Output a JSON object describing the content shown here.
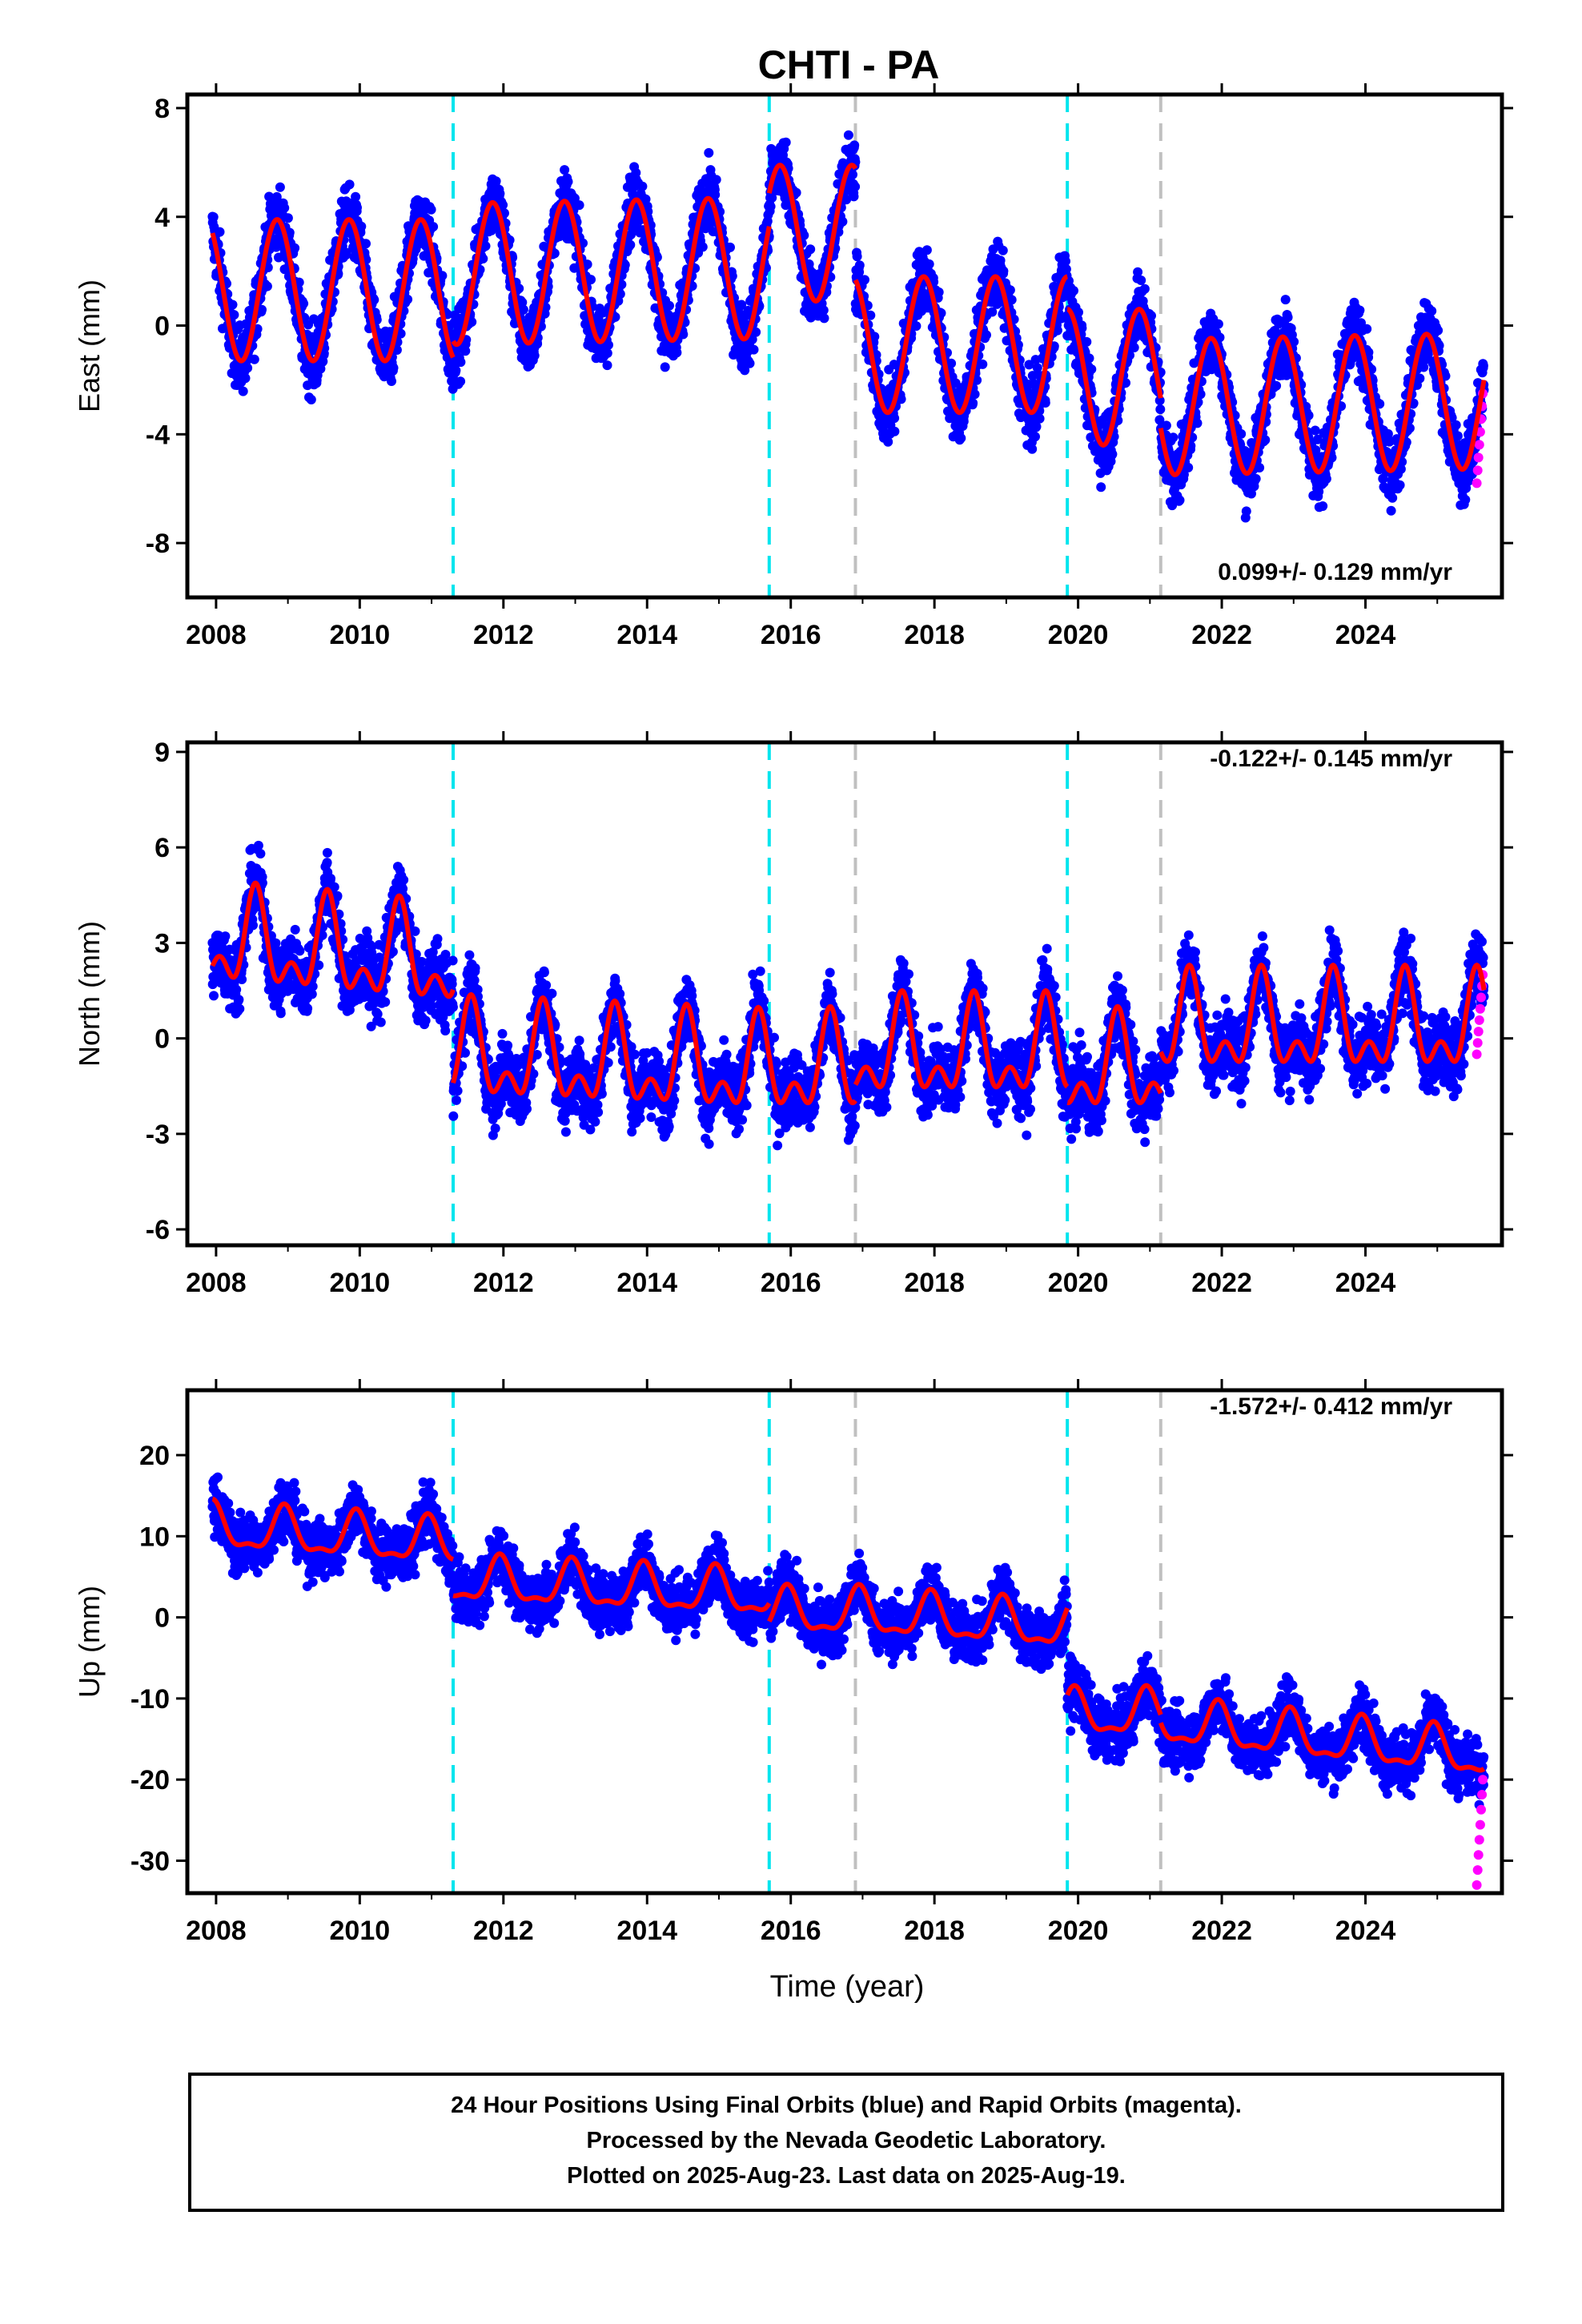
{
  "title": "CHTI - PA",
  "xlabel": "Time (year)",
  "footer": {
    "line1": "24 Hour Positions Using Final Orbits (blue) and Rapid Orbits (magenta).",
    "line2": "Processed by the Nevada Geodetic Laboratory.",
    "line3": "Plotted on 2025-Aug-23. Last data on 2025-Aug-19."
  },
  "colors": {
    "final_points": "#0000ff",
    "rapid_points": "#ff00ff",
    "model_line": "#ff0000",
    "equipment_change": "#00e5ee",
    "other_event": "#c0c0c0"
  },
  "chart_data": [
    {
      "type": "scatter",
      "component": "East",
      "ylabel": "East (mm)",
      "rate_text": "0.099+/- 0.129 mm/yr",
      "xlim": [
        2007.6,
        2025.9
      ],
      "ylim": [
        -10,
        8.5
      ],
      "xticks": [
        "2008",
        "2010",
        "2012",
        "2014",
        "2016",
        "2018",
        "2020",
        "2022",
        "2024"
      ],
      "yticks": [
        "8",
        "4",
        "0",
        "-4",
        "-8"
      ],
      "equipment_changes": [
        2011.3,
        2015.7,
        2019.85
      ],
      "other_events": [
        2016.9,
        2021.15
      ],
      "model": {
        "segments": [
          {
            "start": 2007.95,
            "end": 2011.3,
            "offset": 1.3,
            "trend": 0.0,
            "amp": 2.6
          },
          {
            "start": 2011.3,
            "end": 2015.7,
            "offset": 1.9,
            "trend": 0.05,
            "amp": 2.6
          },
          {
            "start": 2015.7,
            "end": 2016.9,
            "offset": 3.4,
            "trend": 0.0,
            "amp": 2.5
          },
          {
            "start": 2016.9,
            "end": 2019.85,
            "offset": -0.7,
            "trend": 0.0,
            "amp": 2.5
          },
          {
            "start": 2019.85,
            "end": 2021.15,
            "offset": -1.9,
            "trend": 0.0,
            "amp": 2.5
          },
          {
            "start": 2021.15,
            "end": 2025.65,
            "offset": -3.0,
            "trend": 0.05,
            "amp": 2.5
          }
        ],
        "annual_phase_year": 0.85,
        "semiannual_amp": 0.0
      },
      "scatter_noise": 1.1,
      "rapid_range": [
        -5.8,
        -2.5
      ]
    },
    {
      "type": "scatter",
      "component": "North",
      "ylabel": "North (mm)",
      "rate_text": "-0.122+/- 0.145 mm/yr",
      "xlim": [
        2007.6,
        2025.9
      ],
      "ylim": [
        -6.5,
        9.3
      ],
      "xticks": [
        "2008",
        "2010",
        "2012",
        "2014",
        "2016",
        "2018",
        "2020",
        "2022",
        "2024"
      ],
      "yticks": [
        "9",
        "6",
        "3",
        "0",
        "-3",
        "-6"
      ],
      "equipment_changes": [
        2011.3,
        2015.7,
        2019.85
      ],
      "other_events": [
        2016.9,
        2021.15
      ],
      "model": {
        "segments": [
          {
            "start": 2007.95,
            "end": 2011.3,
            "offset": 3.0,
            "trend": -0.2,
            "amp": 1.2
          },
          {
            "start": 2011.3,
            "end": 2015.7,
            "offset": -0.6,
            "trend": -0.1,
            "amp": 1.2
          },
          {
            "start": 2015.7,
            "end": 2016.9,
            "offset": -1.0,
            "trend": 0.0,
            "amp": 1.2
          },
          {
            "start": 2016.9,
            "end": 2019.85,
            "offset": -0.5,
            "trend": 0.0,
            "amp": 1.2
          },
          {
            "start": 2019.85,
            "end": 2021.15,
            "offset": -1.0,
            "trend": 0.0,
            "amp": 1.2
          },
          {
            "start": 2021.15,
            "end": 2025.65,
            "offset": 0.3,
            "trend": 0.0,
            "amp": 1.2
          }
        ],
        "annual_phase_year": 0.55,
        "semiannual_amp": 0.8
      },
      "scatter_noise": 1.0,
      "rapid_range": [
        -0.5,
        2.0
      ]
    },
    {
      "type": "scatter",
      "component": "Up",
      "ylabel": "Up (mm)",
      "rate_text": "-1.572+/- 0.412 mm/yr",
      "xlim": [
        2007.6,
        2025.9
      ],
      "ylim": [
        -34,
        28
      ],
      "xticks": [
        "2008",
        "2010",
        "2012",
        "2014",
        "2016",
        "2018",
        "2020",
        "2022",
        "2024"
      ],
      "yticks": [
        "20",
        "10",
        "0",
        "-10",
        "-20",
        "-30"
      ],
      "equipment_changes": [
        2011.3,
        2015.7,
        2019.85
      ],
      "other_events": [
        2016.9,
        2021.15
      ],
      "model": {
        "segments": [
          {
            "start": 2007.95,
            "end": 2011.3,
            "offset": 11.0,
            "trend": -0.6,
            "amp": 2.6
          },
          {
            "start": 2011.3,
            "end": 2015.7,
            "offset": 4.5,
            "trend": -0.4,
            "amp": 2.6
          },
          {
            "start": 2015.7,
            "end": 2016.9,
            "offset": 0.5,
            "trend": 0.0,
            "amp": 2.6
          },
          {
            "start": 2016.9,
            "end": 2019.85,
            "offset": 0.5,
            "trend": -0.6,
            "amp": 2.6
          },
          {
            "start": 2019.85,
            "end": 2021.15,
            "offset": -12.0,
            "trend": 0.0,
            "amp": 2.6
          },
          {
            "start": 2021.15,
            "end": 2025.65,
            "offset": -13.0,
            "trend": -0.9,
            "amp": 2.6
          }
        ],
        "annual_phase_year": 0.95,
        "semiannual_amp": 1.0
      },
      "scatter_noise": 3.2,
      "rapid_range": [
        -33,
        -20
      ]
    }
  ]
}
